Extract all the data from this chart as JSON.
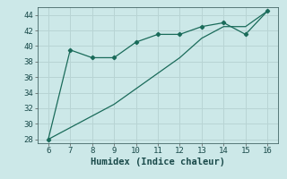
{
  "xlabel": "Humidex (Indice chaleur)",
  "background_color": "#cce8e8",
  "grid_color": "#b8d4d4",
  "line_color": "#1a6b5a",
  "x_line1": [
    6,
    7,
    8,
    9,
    10,
    11,
    12,
    13,
    14,
    15,
    16
  ],
  "y_line1": [
    28,
    39.5,
    38.5,
    38.5,
    40.5,
    41.5,
    41.5,
    42.5,
    43,
    41.5,
    44.5
  ],
  "x_line2": [
    6,
    7,
    8,
    9,
    10,
    11,
    12,
    13,
    14,
    15,
    16
  ],
  "y_line2": [
    28,
    29.5,
    31,
    32.5,
    34.5,
    36.5,
    38.5,
    41,
    42.5,
    42.5,
    44.5
  ],
  "xlim": [
    5.5,
    16.5
  ],
  "ylim": [
    27.5,
    45.0
  ],
  "xticks": [
    6,
    7,
    8,
    9,
    10,
    11,
    12,
    13,
    14,
    15,
    16
  ],
  "yticks": [
    28,
    30,
    32,
    34,
    36,
    38,
    40,
    42,
    44
  ],
  "fontsize_label": 7.5,
  "fontsize_tick": 6.5
}
